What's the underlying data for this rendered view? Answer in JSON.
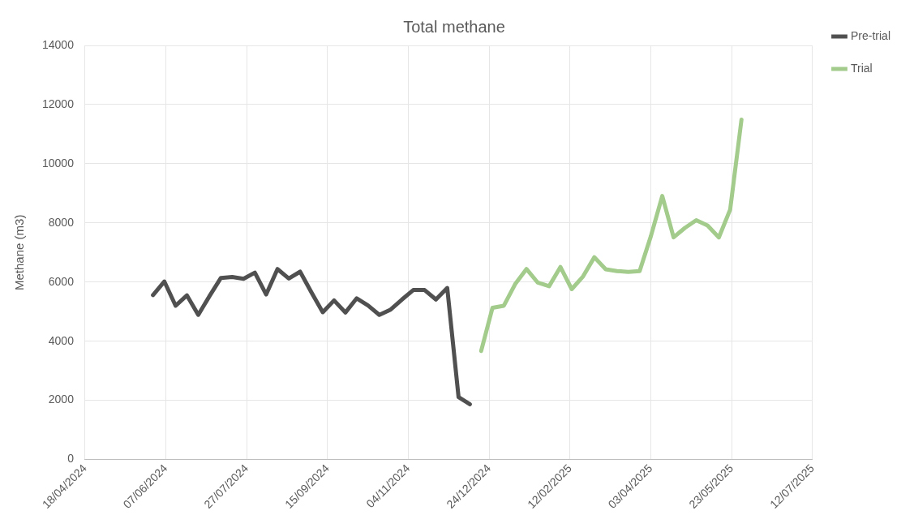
{
  "chart_data": {
    "type": "line",
    "title": "Total methane",
    "ylabel": "Methane (m3)",
    "xlim": [
      "2024-04-18",
      "2025-07-12"
    ],
    "xticks": [
      {
        "value": "2024-04-18",
        "label": "18/04/2024"
      },
      {
        "value": "2024-06-07",
        "label": "07/06/2024"
      },
      {
        "value": "2024-07-27",
        "label": "27/07/2024"
      },
      {
        "value": "2024-09-15",
        "label": "15/09/2024"
      },
      {
        "value": "2024-11-04",
        "label": "04/11/2024"
      },
      {
        "value": "2024-12-24",
        "label": "24/12/2024"
      },
      {
        "value": "2025-02-12",
        "label": "12/02/2025"
      },
      {
        "value": "2025-04-03",
        "label": "03/04/2025"
      },
      {
        "value": "2025-05-23",
        "label": "23/05/2025"
      },
      {
        "value": "2025-07-12",
        "label": "12/07/2025"
      }
    ],
    "ylim": [
      0,
      14000
    ],
    "yticks": [
      0,
      2000,
      4000,
      6000,
      8000,
      10000,
      12000,
      14000
    ],
    "grid": true,
    "legend": "right",
    "marker": "none",
    "line_style": "solid",
    "series": [
      {
        "name": "Pre-trial",
        "color": "#505050",
        "x": [
          "2024-05-30",
          "2024-06-06",
          "2024-06-13",
          "2024-06-20",
          "2024-06-27",
          "2024-07-04",
          "2024-07-11",
          "2024-07-18",
          "2024-07-25",
          "2024-08-01",
          "2024-08-08",
          "2024-08-15",
          "2024-08-22",
          "2024-08-29",
          "2024-09-05",
          "2024-09-12",
          "2024-09-19",
          "2024-09-26",
          "2024-10-03",
          "2024-10-10",
          "2024-10-17",
          "2024-10-24",
          "2024-10-31",
          "2024-11-07",
          "2024-11-14",
          "2024-11-21",
          "2024-11-28",
          "2024-12-05",
          "2024-12-12"
        ],
        "values": [
          5560,
          6020,
          5200,
          5550,
          4890,
          5530,
          6140,
          6170,
          6110,
          6320,
          5580,
          6440,
          6120,
          6350,
          5650,
          4980,
          5380,
          4970,
          5450,
          5210,
          4890,
          5070,
          5410,
          5730,
          5730,
          5410,
          5800,
          2110,
          1870
        ]
      },
      {
        "name": "Trial",
        "color": "#a3cc8c",
        "x": [
          "2024-12-19",
          "2024-12-26",
          "2025-01-02",
          "2025-01-09",
          "2025-01-16",
          "2025-01-23",
          "2025-01-30",
          "2025-02-06",
          "2025-02-13",
          "2025-02-20",
          "2025-02-27",
          "2025-03-06",
          "2025-03-13",
          "2025-03-20",
          "2025-03-27",
          "2025-04-03",
          "2025-04-10",
          "2025-04-17",
          "2025-04-24",
          "2025-05-01",
          "2025-05-08",
          "2025-05-15",
          "2025-05-22",
          "2025-05-29"
        ],
        "values": [
          3670,
          5130,
          5200,
          5930,
          6440,
          5980,
          5860,
          6510,
          5760,
          6190,
          6840,
          6430,
          6370,
          6340,
          6370,
          7560,
          8910,
          7510,
          7830,
          8090,
          7910,
          7510,
          8450,
          11490
        ]
      }
    ]
  }
}
